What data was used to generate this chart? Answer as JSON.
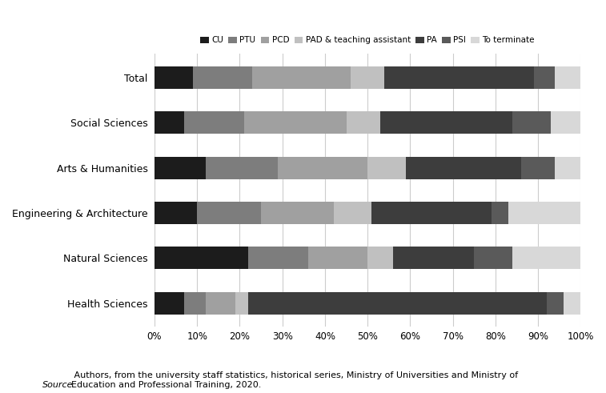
{
  "categories": [
    "Total",
    "Social Sciences",
    "Arts & Humanities",
    "Engineering & Architecture",
    "Natural Sciences",
    "Health Sciences"
  ],
  "series": {
    "CU": [
      9.0,
      7.0,
      12.0,
      10.0,
      22.0,
      7.0
    ],
    "PTU": [
      14.0,
      14.0,
      17.0,
      15.0,
      14.0,
      5.0
    ],
    "PCD": [
      23.0,
      24.0,
      21.0,
      17.0,
      14.0,
      7.0
    ],
    "PAD & teaching assistant": [
      8.0,
      8.0,
      9.0,
      9.0,
      6.0,
      3.0
    ],
    "PA": [
      35.0,
      31.0,
      27.0,
      28.0,
      19.0,
      70.0
    ],
    "PSI": [
      5.0,
      9.0,
      8.0,
      4.0,
      9.0,
      4.0
    ],
    "To terminate": [
      6.0,
      7.0,
      6.0,
      17.0,
      16.0,
      4.0
    ]
  },
  "colors": {
    "CU": "#1c1c1c",
    "PTU": "#7d7d7d",
    "PCD": "#a0a0a0",
    "PAD & teaching assistant": "#c0c0c0",
    "PA": "#3d3d3d",
    "PSI": "#5a5a5a",
    "To terminate": "#d8d8d8"
  },
  "xlim": [
    0,
    100
  ],
  "xticks": [
    0,
    10,
    20,
    30,
    40,
    50,
    60,
    70,
    80,
    90,
    100
  ],
  "xticklabels": [
    "0%",
    "10%",
    "20%",
    "30%",
    "40%",
    "50%",
    "60%",
    "70%",
    "80%",
    "90%",
    "100%"
  ],
  "source_italic": "Source.",
  "source_rest": " Authors, from the university staff statistics, historical series, Ministry of Universities and Ministry of\nEducation and Professional Training, 2020.",
  "figsize": [
    7.57,
    4.91
  ],
  "dpi": 100,
  "bar_height": 0.5,
  "grid_color": "#cccccc"
}
